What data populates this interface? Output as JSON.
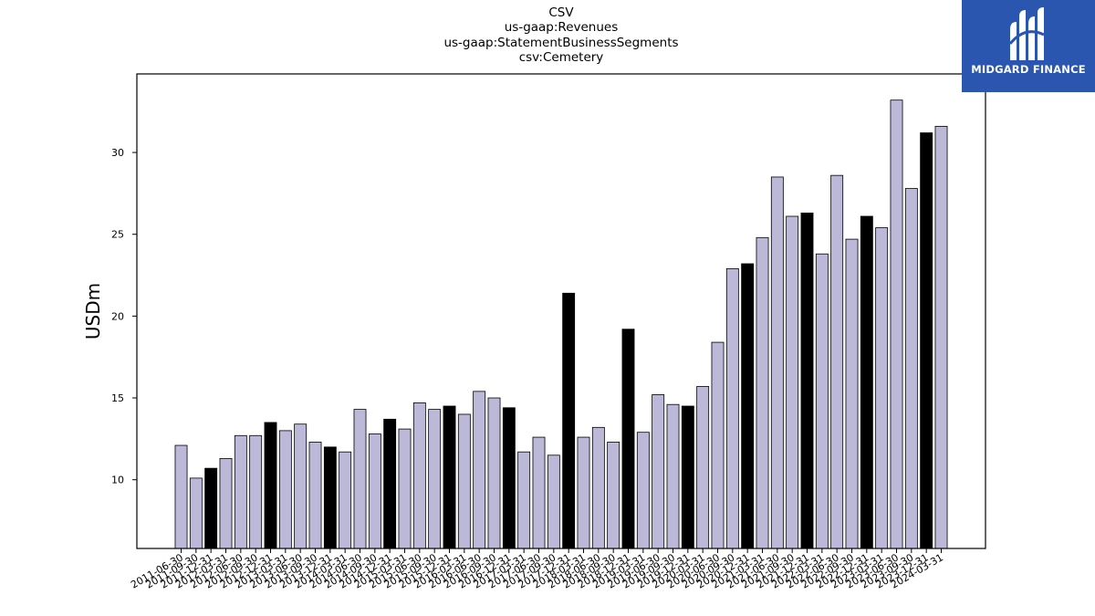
{
  "chart_data": {
    "type": "bar",
    "title_lines": [
      "CSV",
      "us-gaap:Revenues",
      "us-gaap:StatementBusinessSegments",
      "csv:Cemetery"
    ],
    "xlabel": "",
    "ylabel": "USDm",
    "ylim": [
      5.8,
      34.8
    ],
    "yticks": [
      10,
      15,
      20,
      25,
      30
    ],
    "grid": false,
    "legend": "none",
    "bar_color": "#bcb8d8",
    "highlight_color": "#000000",
    "categories": [
      "2011-06-30",
      "2011-09-30",
      "2011-12-31",
      "2012-03-31",
      "2012-06-30",
      "2012-09-30",
      "2012-12-31",
      "2013-03-31",
      "2013-06-30",
      "2013-09-30",
      "2013-12-31",
      "2014-03-31",
      "2014-06-30",
      "2014-09-30",
      "2014-12-31",
      "2015-03-31",
      "2015-06-30",
      "2015-09-30",
      "2015-12-31",
      "2016-03-31",
      "2016-06-30",
      "2016-09-30",
      "2016-12-31",
      "2017-03-31",
      "2017-06-30",
      "2017-09-30",
      "2017-12-31",
      "2018-03-31",
      "2018-06-30",
      "2018-09-30",
      "2018-12-31",
      "2019-03-31",
      "2019-06-30",
      "2019-09-30",
      "2019-12-31",
      "2020-03-31",
      "2020-06-30",
      "2020-09-30",
      "2020-12-31",
      "2021-03-31",
      "2021-06-30",
      "2021-09-30",
      "2021-12-31",
      "2022-03-31",
      "2022-06-30",
      "2022-09-30",
      "2022-12-31",
      "2023-03-31",
      "2023-06-30",
      "2023-09-30",
      "2023-12-31",
      "2024-03-31"
    ],
    "values": [
      12.1,
      10.1,
      10.7,
      11.3,
      12.7,
      12.7,
      13.5,
      13.0,
      13.4,
      12.3,
      12.0,
      11.7,
      14.3,
      12.8,
      13.7,
      13.1,
      14.7,
      14.3,
      14.5,
      14.0,
      15.4,
      15.0,
      14.4,
      11.7,
      12.6,
      11.5,
      21.4,
      12.6,
      13.2,
      12.3,
      19.2,
      12.9,
      15.2,
      14.6,
      14.5,
      15.7,
      18.4,
      22.9,
      23.2,
      24.8,
      28.5,
      26.1,
      26.3,
      23.8,
      28.6,
      24.7,
      26.1,
      25.4,
      33.2,
      27.8,
      31.2,
      31.6
    ],
    "highlighted": [
      false,
      false,
      true,
      false,
      false,
      false,
      true,
      false,
      false,
      false,
      true,
      false,
      false,
      false,
      true,
      false,
      false,
      false,
      true,
      false,
      false,
      false,
      true,
      false,
      false,
      false,
      true,
      false,
      false,
      false,
      true,
      false,
      false,
      false,
      true,
      false,
      false,
      false,
      true,
      false,
      false,
      false,
      true,
      false,
      false,
      false,
      true,
      false,
      false,
      false,
      true,
      false
    ]
  },
  "logo": {
    "text": "MIDGARD FINANCE",
    "background": "#2a56b0"
  }
}
